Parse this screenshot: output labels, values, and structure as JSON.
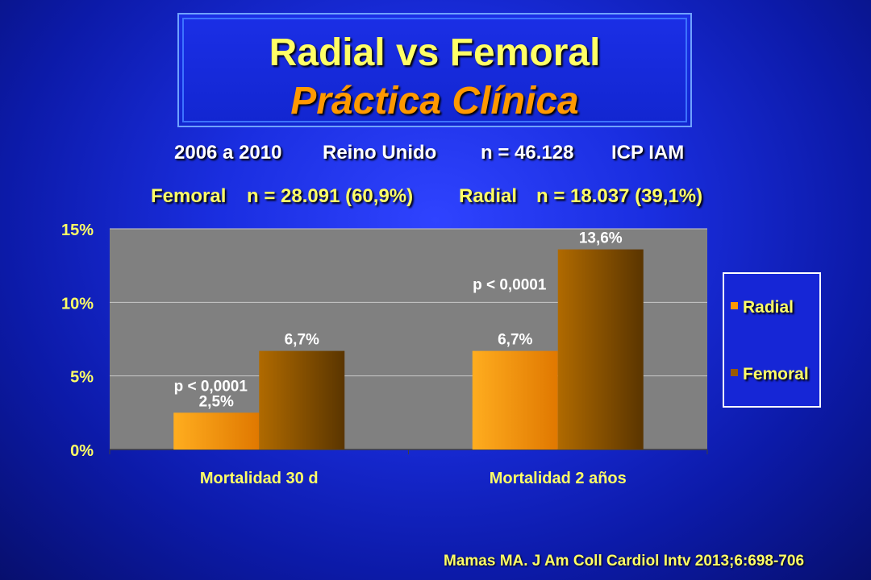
{
  "title": {
    "line1": "Radial vs Femoral",
    "line2": "Práctica  Clínica"
  },
  "study": {
    "period": "2006 a 2010",
    "country": "Reino Unido",
    "n_total": "n = 46.128",
    "procedure": "ICP IAM"
  },
  "groups": {
    "femoral_label": "Femoral",
    "femoral_n": "n = 28.091 (60,9%)",
    "radial_label": "Radial",
    "radial_n": "n = 18.037 (39,1%)"
  },
  "citation": "Mamas MA. J Am Coll Cardiol Intv 2013;6:698-706",
  "colors": {
    "radial": "#ff9900",
    "femoral": "#9a5a00",
    "plot_bg": "#808080"
  },
  "chart_data": {
    "type": "bar",
    "categories": [
      "Mortalidad 30 d",
      "Mortalidad 2 años"
    ],
    "series": [
      {
        "name": "Radial",
        "values": [
          2.5,
          6.7
        ],
        "labels": [
          "2,5%",
          "6,7%"
        ]
      },
      {
        "name": "Femoral",
        "values": [
          6.7,
          13.6
        ],
        "labels": [
          "6,7%",
          "13,6%"
        ]
      }
    ],
    "ylim": [
      0,
      15
    ],
    "yticks": [
      0,
      5,
      10,
      15
    ],
    "ytick_labels": [
      "0%",
      "5%",
      "10%",
      "15%"
    ],
    "annotations": [
      "p < 0,0001",
      "p < 0,0001"
    ],
    "grid": true,
    "legend_position": "right"
  }
}
